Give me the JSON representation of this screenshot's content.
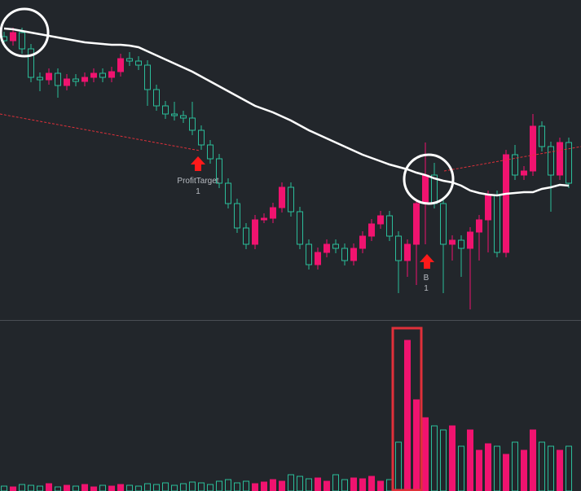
{
  "chart_data": {
    "type": "candlestick",
    "up_color": "#f0136f",
    "down_color": "#2bbd9a",
    "ma_color": "#ffffff",
    "ylim": [
      10,
      400
    ],
    "volume_ylim": [
      0,
      200
    ],
    "candles": [
      [
        355,
        361,
        344,
        350
      ],
      [
        350,
        366,
        344,
        360
      ],
      [
        360,
        366,
        334,
        340
      ],
      [
        340,
        346,
        299,
        305
      ],
      [
        305,
        311,
        288,
        302
      ],
      [
        302,
        316,
        296,
        310
      ],
      [
        310,
        316,
        280,
        295
      ],
      [
        295,
        309,
        289,
        303
      ],
      [
        303,
        309,
        294,
        300
      ],
      [
        300,
        311,
        294,
        305
      ],
      [
        305,
        316,
        299,
        310
      ],
      [
        310,
        316,
        299,
        305
      ],
      [
        305,
        318,
        299,
        312
      ],
      [
        312,
        334,
        306,
        328
      ],
      [
        328,
        336,
        319,
        325
      ],
      [
        325,
        331,
        314,
        320
      ],
      [
        320,
        326,
        270,
        290
      ],
      [
        290,
        296,
        264,
        270
      ],
      [
        270,
        276,
        254,
        260
      ],
      [
        260,
        275,
        252,
        258
      ],
      [
        258,
        264,
        249,
        255
      ],
      [
        255,
        275,
        234,
        240
      ],
      [
        240,
        246,
        216,
        222
      ],
      [
        222,
        228,
        199,
        205
      ],
      [
        205,
        211,
        169,
        175
      ],
      [
        175,
        181,
        144,
        150
      ],
      [
        150,
        156,
        114,
        120
      ],
      [
        120,
        126,
        94,
        100
      ],
      [
        100,
        136,
        94,
        130
      ],
      [
        130,
        138,
        126,
        132
      ],
      [
        132,
        151,
        126,
        145
      ],
      [
        145,
        176,
        139,
        170
      ],
      [
        170,
        176,
        134,
        140
      ],
      [
        140,
        146,
        94,
        100
      ],
      [
        100,
        106,
        69,
        75
      ],
      [
        75,
        96,
        69,
        90
      ],
      [
        90,
        106,
        84,
        100
      ],
      [
        100,
        106,
        89,
        95
      ],
      [
        95,
        101,
        74,
        80
      ],
      [
        80,
        101,
        74,
        95
      ],
      [
        95,
        116,
        89,
        110
      ],
      [
        110,
        131,
        104,
        125
      ],
      [
        125,
        141,
        119,
        135
      ],
      [
        135,
        141,
        104,
        110
      ],
      [
        110,
        116,
        40,
        80
      ],
      [
        80,
        106,
        60,
        100
      ],
      [
        100,
        156,
        50,
        150
      ],
      [
        150,
        225,
        100,
        185
      ],
      [
        185,
        200,
        144,
        150
      ],
      [
        150,
        156,
        40,
        100
      ],
      [
        100,
        111,
        80,
        105
      ],
      [
        105,
        111,
        60,
        95
      ],
      [
        95,
        121,
        20,
        115
      ],
      [
        115,
        136,
        80,
        130
      ],
      [
        130,
        166,
        90,
        160
      ],
      [
        160,
        166,
        84,
        90
      ],
      [
        90,
        216,
        84,
        210
      ],
      [
        210,
        222,
        179,
        185
      ],
      [
        185,
        196,
        179,
        190
      ],
      [
        190,
        260,
        184,
        245
      ],
      [
        245,
        251,
        214,
        220
      ],
      [
        220,
        226,
        140,
        185
      ],
      [
        185,
        231,
        179,
        225
      ],
      [
        225,
        231,
        169,
        175
      ]
    ],
    "volume": [
      6,
      5,
      8,
      7,
      6,
      9,
      5,
      7,
      6,
      8,
      5,
      7,
      6,
      8,
      7,
      6,
      9,
      8,
      10,
      7,
      9,
      11,
      10,
      8,
      12,
      14,
      10,
      12,
      9,
      11,
      14,
      12,
      20,
      18,
      15,
      16,
      12,
      20,
      14,
      16,
      15,
      18,
      12,
      14,
      60,
      185,
      112,
      90,
      80,
      75,
      80,
      55,
      75,
      50,
      58,
      55,
      45,
      60,
      50,
      75,
      60,
      55,
      50,
      55
    ],
    "ma": [
      365,
      364,
      362,
      360,
      358,
      356,
      354,
      352,
      350,
      348,
      347,
      346,
      345,
      345,
      344,
      342,
      337,
      332,
      327,
      322,
      317,
      312,
      306,
      300,
      294,
      288,
      282,
      276,
      270,
      266,
      262,
      257,
      252,
      246,
      240,
      235,
      230,
      225,
      220,
      215,
      210,
      206,
      202,
      198,
      195,
      192,
      188,
      185,
      181,
      178,
      176,
      172,
      166,
      163,
      161,
      160,
      162,
      163,
      164,
      164,
      168,
      170,
      173,
      172
    ],
    "annotations": [
      {
        "label": "ProfitTarget",
        "qty": "1"
      },
      {
        "label": "B",
        "qty": "1"
      }
    ]
  }
}
